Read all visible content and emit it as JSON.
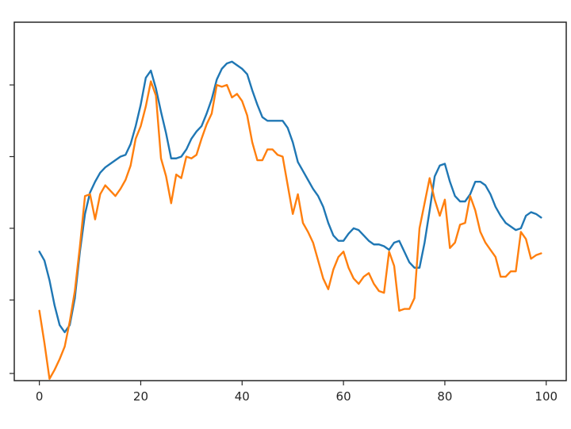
{
  "chart_data": {
    "type": "line",
    "title": "",
    "xlabel": "",
    "ylabel": "",
    "xlim": [
      -4.95,
      103.95
    ],
    "ylim": [
      0,
      100
    ],
    "x_ticks": [
      0,
      20,
      40,
      60,
      80,
      100
    ],
    "y_ticks_labeled": false,
    "y_tick_positions": [
      2,
      22.5,
      42.5,
      62.5,
      82.5
    ],
    "grid": false,
    "legend": "none",
    "series": [
      {
        "color": "#1f77b4",
        "x": [
          0,
          1,
          2,
          3,
          4,
          5,
          6,
          7,
          8,
          9,
          10,
          11,
          12,
          13,
          14,
          15,
          16,
          17,
          18,
          19,
          20,
          21,
          22,
          23,
          24,
          25,
          26,
          27,
          28,
          29,
          30,
          31,
          32,
          33,
          34,
          35,
          36,
          37,
          38,
          39,
          40,
          41,
          42,
          43,
          44,
          45,
          46,
          47,
          48,
          49,
          50,
          51,
          52,
          53,
          54,
          55,
          56,
          57,
          58,
          59,
          60,
          61,
          62,
          63,
          64,
          65,
          66,
          67,
          68,
          69,
          70,
          71,
          72,
          73,
          74,
          75,
          76,
          77,
          78,
          79,
          80,
          81,
          82,
          83,
          84,
          85,
          86,
          87,
          88,
          89,
          90,
          91,
          92,
          93,
          94,
          95,
          96,
          97,
          98,
          99
        ],
        "y": [
          36.0,
          33.5,
          28.0,
          21.0,
          15.5,
          13.5,
          15.5,
          23.0,
          36.0,
          46.5,
          52.5,
          55.5,
          58.0,
          59.5,
          60.5,
          61.5,
          62.5,
          63.0,
          66.0,
          71.0,
          77.0,
          84.5,
          86.5,
          81.5,
          75.0,
          69.0,
          62.0,
          62.0,
          62.5,
          64.5,
          67.5,
          69.5,
          71.0,
          74.5,
          78.5,
          84.0,
          87.0,
          88.5,
          89.0,
          88.0,
          87.0,
          85.5,
          81.0,
          77.0,
          73.5,
          72.5,
          72.5,
          72.5,
          72.5,
          70.5,
          66.5,
          61.0,
          58.5,
          56.0,
          53.5,
          51.5,
          48.5,
          44.0,
          40.5,
          39.0,
          39.0,
          41.0,
          42.5,
          42.0,
          40.5,
          39.0,
          38.0,
          38.0,
          37.5,
          36.5,
          38.5,
          39.0,
          36.0,
          33.0,
          31.5,
          31.5,
          38.5,
          47.5,
          57.0,
          60.0,
          60.5,
          55.5,
          51.5,
          50.0,
          50.0,
          52.0,
          55.5,
          55.5,
          54.5,
          52.0,
          48.5,
          46.0,
          44.0,
          43.0,
          42.0,
          42.5,
          46.0,
          47.0,
          46.5,
          45.5
        ]
      },
      {
        "color": "#ff7f0e",
        "x": [
          0,
          1,
          2,
          3,
          4,
          5,
          6,
          7,
          8,
          9,
          10,
          11,
          12,
          13,
          14,
          15,
          16,
          17,
          18,
          19,
          20,
          21,
          22,
          23,
          24,
          25,
          26,
          27,
          28,
          29,
          30,
          31,
          32,
          33,
          34,
          35,
          36,
          37,
          38,
          39,
          40,
          41,
          42,
          43,
          44,
          45,
          46,
          47,
          48,
          49,
          50,
          51,
          52,
          53,
          54,
          55,
          56,
          57,
          58,
          59,
          60,
          61,
          62,
          63,
          64,
          65,
          66,
          67,
          68,
          69,
          70,
          71,
          72,
          73,
          74,
          75,
          76,
          77,
          78,
          79,
          80,
          81,
          82,
          83,
          84,
          85,
          86,
          87,
          88,
          89,
          90,
          91,
          92,
          93,
          94,
          95,
          96,
          97,
          98,
          99
        ],
        "y": [
          19.5,
          10.5,
          0.5,
          3.0,
          6.0,
          9.5,
          16.5,
          25.0,
          37.5,
          51.5,
          52.0,
          45.0,
          52.0,
          54.5,
          53.0,
          51.5,
          53.5,
          56.0,
          60.0,
          67.5,
          71.0,
          76.5,
          83.5,
          79.5,
          62.0,
          57.0,
          49.5,
          57.5,
          56.5,
          62.5,
          62.0,
          63.0,
          67.5,
          71.5,
          74.5,
          82.5,
          82.0,
          82.5,
          79.0,
          80.0,
          78.0,
          74.0,
          66.5,
          61.5,
          61.5,
          64.5,
          64.5,
          63.0,
          62.5,
          54.5,
          46.5,
          52.0,
          44.0,
          41.5,
          38.5,
          33.5,
          28.5,
          25.5,
          31.0,
          34.5,
          36.0,
          31.5,
          28.5,
          27.0,
          29.0,
          30.0,
          27.0,
          25.0,
          24.5,
          36.0,
          32.0,
          19.5,
          20.0,
          20.0,
          23.0,
          42.5,
          49.5,
          56.5,
          50.5,
          46.0,
          50.5,
          37.0,
          38.5,
          43.5,
          44.0,
          51.5,
          47.5,
          41.5,
          38.5,
          36.5,
          34.5,
          29.0,
          29.0,
          30.5,
          30.5,
          41.5,
          39.5,
          34.0,
          35.0,
          35.5
        ]
      }
    ]
  }
}
